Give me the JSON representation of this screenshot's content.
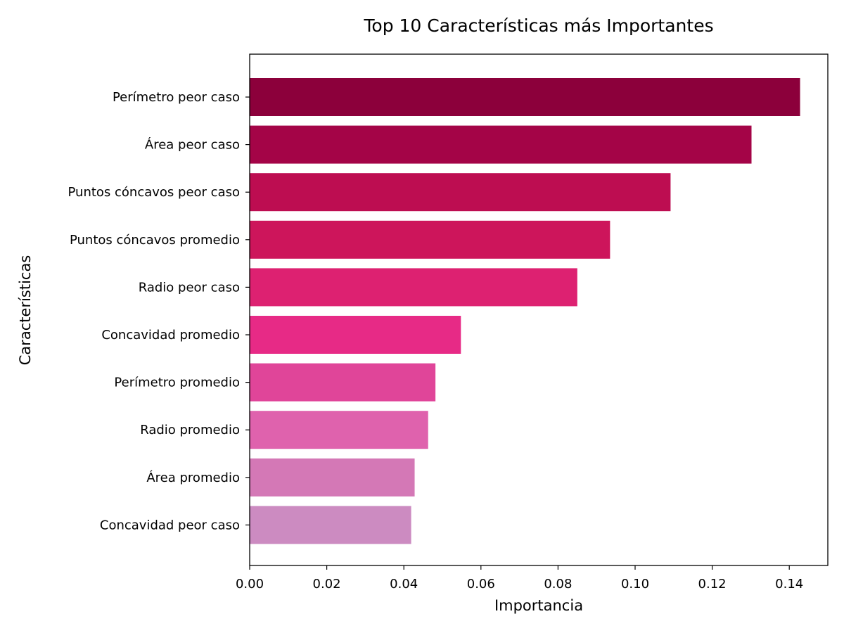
{
  "chart_data": {
    "type": "bar",
    "orientation": "horizontal",
    "title": "Top 10 Características más Importantes",
    "xlabel": "Importancia",
    "ylabel": "Características",
    "xlim": [
      0,
      0.15
    ],
    "xticks": [
      0.0,
      0.02,
      0.04,
      0.06,
      0.08,
      0.1,
      0.12,
      0.14
    ],
    "xtick_labels": [
      "0.00",
      "0.02",
      "0.04",
      "0.06",
      "0.08",
      "0.10",
      "0.12",
      "0.14"
    ],
    "grid": false,
    "categories": [
      "Perímetro peor caso",
      "Área peor caso",
      "Puntos cóncavos peor caso",
      "Puntos cóncavos promedio",
      "Radio peor caso",
      "Concavidad promedio",
      "Perímetro promedio",
      "Radio promedio",
      "Área promedio",
      "Concavidad peor caso"
    ],
    "values": [
      0.1428,
      0.1302,
      0.1092,
      0.0935,
      0.085,
      0.0548,
      0.0482,
      0.0463,
      0.0428,
      0.0419
    ],
    "colors": [
      "#8c003b",
      "#a40447",
      "#bd0d51",
      "#cd155b",
      "#dd2171",
      "#e72a86",
      "#e04599",
      "#df62ad",
      "#d478b6",
      "#cc8bc1"
    ]
  }
}
